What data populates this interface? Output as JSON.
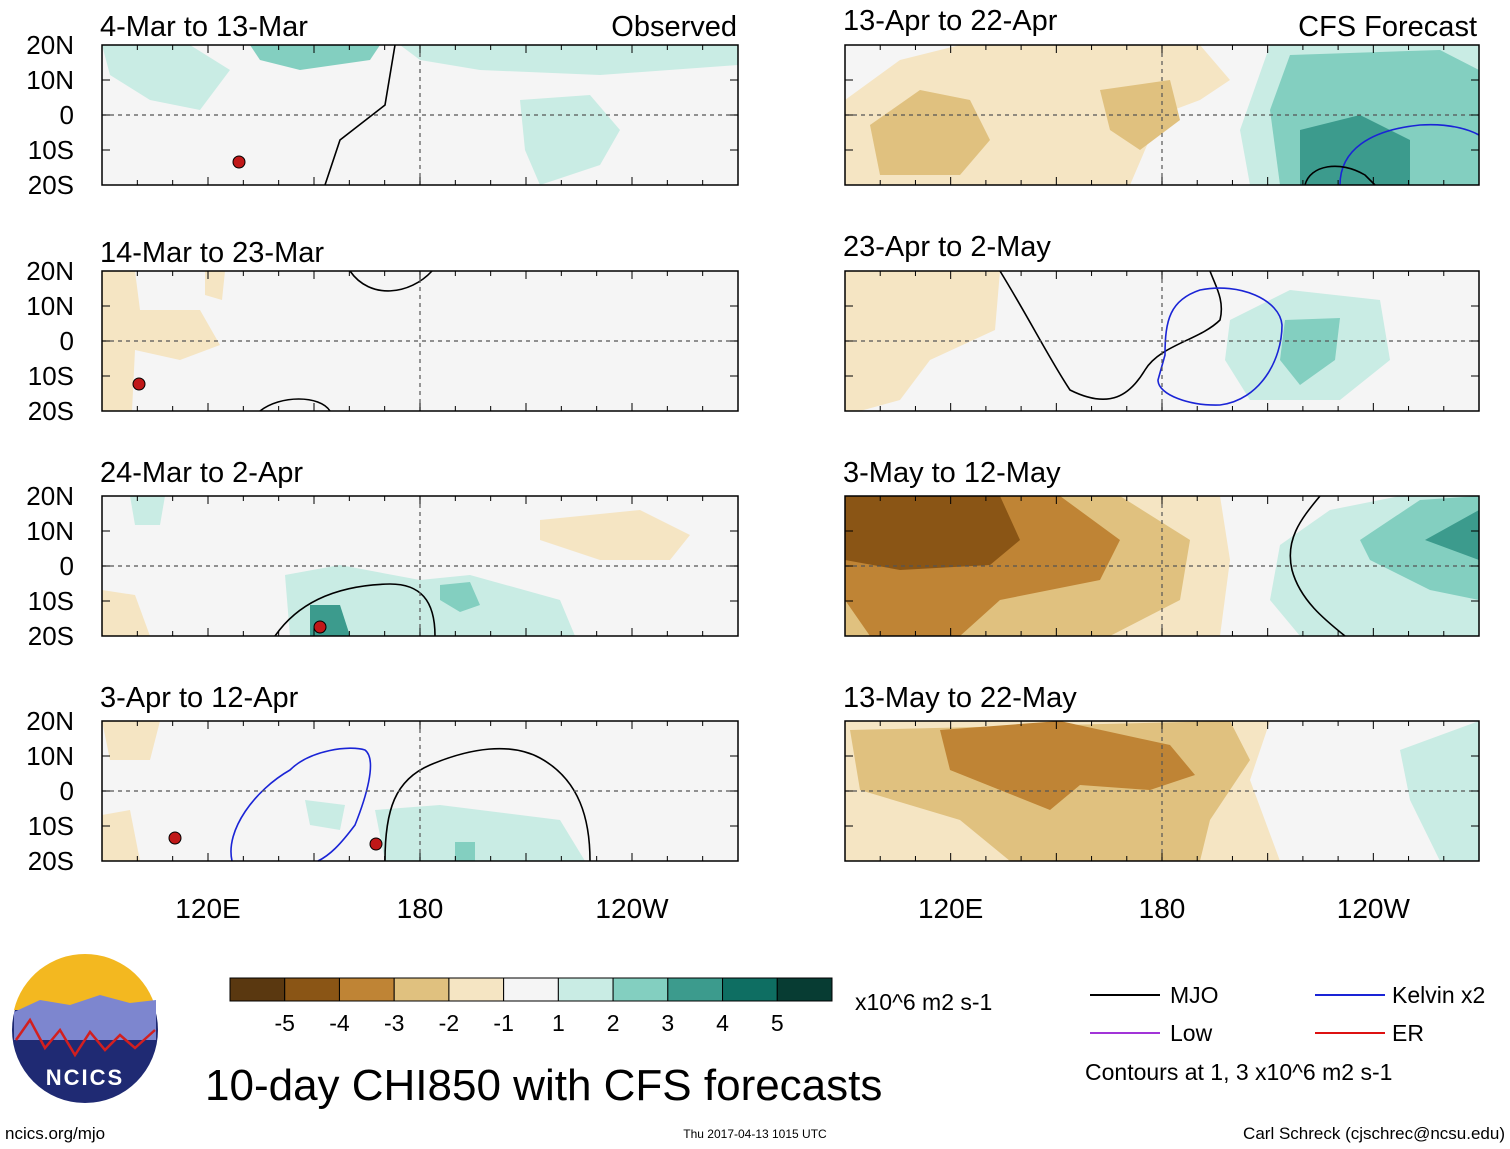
{
  "chart_data": {
    "type": "heatmap",
    "title": "10-day CHI850 with CFS forecasts",
    "variable": "CHI850",
    "units": "x10^6 m2 s-1",
    "observed_label": "Observed",
    "forecast_label": "CFS Forecast",
    "lat_ticks": [
      "20N",
      "10N",
      "0",
      "10S",
      "20S"
    ],
    "lon_ticks": [
      "120E",
      "180",
      "120W"
    ],
    "lat_range": [
      -20,
      20
    ],
    "lon_range": [
      90,
      270
    ],
    "panels": [
      {
        "period": "4-Mar to 13-Mar",
        "source": "Observed"
      },
      {
        "period": "14-Mar to 23-Mar",
        "source": "Observed"
      },
      {
        "period": "24-Mar to 2-Apr",
        "source": "Observed"
      },
      {
        "period": "3-Apr to 12-Apr",
        "source": "Observed"
      },
      {
        "period": "13-Apr to 22-Apr",
        "source": "CFS Forecast"
      },
      {
        "period": "23-Apr to 2-May",
        "source": "CFS Forecast"
      },
      {
        "period": "3-May to 12-May",
        "source": "CFS Forecast"
      },
      {
        "period": "13-May to 22-May",
        "source": "CFS Forecast"
      }
    ],
    "colorbar": {
      "levels": [
        "-5",
        "-4",
        "-3",
        "-2",
        "-1",
        "1",
        "2",
        "3",
        "4",
        "5"
      ],
      "colors": [
        "#5a3810",
        "#8a5515",
        "#bf8435",
        "#e0c17f",
        "#f5e5c3",
        "#f5f5f5",
        "#c9ece4",
        "#83cfc0",
        "#3c9b8d",
        "#0e6e62",
        "#073c33"
      ],
      "units": "x10^6 m2 s-1"
    },
    "legend": [
      {
        "label": "MJO",
        "color": "#000000"
      },
      {
        "label": "Kelvin x2",
        "color": "#1a24d6"
      },
      {
        "label": "Low",
        "color": "#a234d8"
      },
      {
        "label": "ER",
        "color": "#dd1111"
      }
    ],
    "contour_note": "Contours at 1, 3 x10^6 m2 s-1"
  },
  "footer": {
    "logo_text": "NCICS",
    "url": "ncics.org/mjo",
    "timestamp": "Thu 2017-04-13 1015 UTC",
    "author": "Carl Schreck (cjschrec@ncsu.edu)"
  }
}
